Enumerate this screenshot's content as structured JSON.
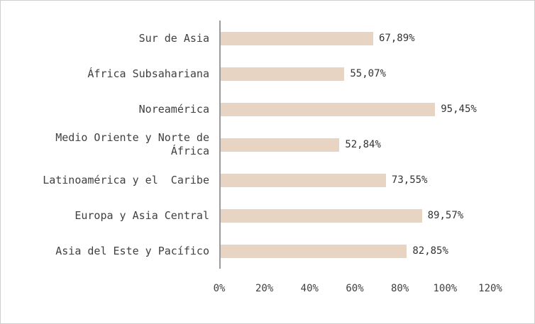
{
  "chart_data": {
    "type": "bar",
    "orientation": "horizontal",
    "title": "",
    "xlabel": "",
    "ylabel": "",
    "xlim": [
      0,
      120
    ],
    "grid": "off",
    "legend": "none",
    "bar_color": "#e8d4c3",
    "axis_color": "#9a9a9a",
    "categories": [
      "Sur de Asia",
      "África Subsahariana",
      "Noreamérica",
      "Medio Oriente y Norte de África",
      "Latinoamérica y el  Caribe",
      "Europa y Asia Central",
      "Asia del Este y Pacífico"
    ],
    "values": [
      67.89,
      55.07,
      95.45,
      52.84,
      73.55,
      89.57,
      82.85
    ],
    "value_labels": [
      "67,89%",
      "55,07%",
      "95,45%",
      "52,84%",
      "73,55%",
      "89,57%",
      "82,85%"
    ],
    "x_ticks": [
      "0%",
      "20%",
      "40%",
      "60%",
      "80%",
      "100%",
      "120%"
    ]
  }
}
